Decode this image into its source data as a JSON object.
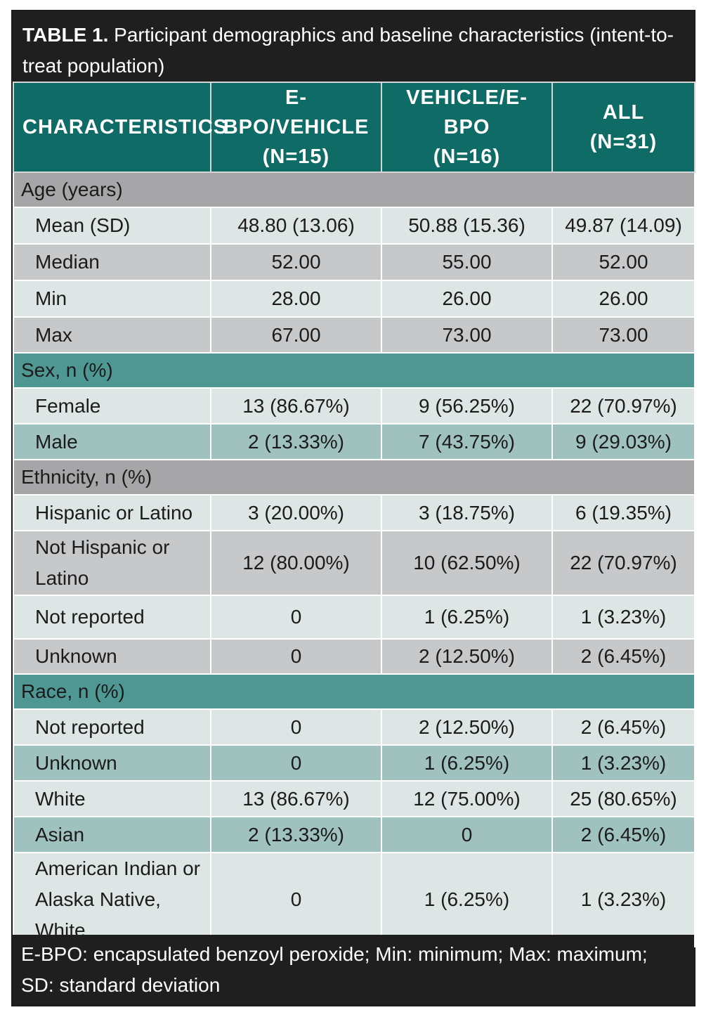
{
  "caption": {
    "label": "TABLE 1.",
    "text": " Participant demographics and baseline characteristics (intent-to-treat population)"
  },
  "headers": {
    "characteristics": "CHARACTERISTICS",
    "col1_name": "E-BPO/VEHICLE",
    "col1_n": "(N=15)",
    "col2_name": "VEHICLE/E-BPO",
    "col2_n": "(N=16)",
    "col3_name": "ALL",
    "col3_n": "(N=31)"
  },
  "age": {
    "title": "Age (years)",
    "rows": [
      {
        "label": "Mean (SD)",
        "v1": "48.80 (13.06)",
        "v2": "50.88 (15.36)",
        "v3": "49.87 (14.09)"
      },
      {
        "label": "Median",
        "v1": "52.00",
        "v2": "55.00",
        "v3": "52.00"
      },
      {
        "label": "Min",
        "v1": "28.00",
        "v2": "26.00",
        "v3": "26.00"
      },
      {
        "label": "Max",
        "v1": "67.00",
        "v2": "73.00",
        "v3": "73.00"
      }
    ]
  },
  "sex": {
    "title": "Sex, n (%)",
    "rows": [
      {
        "label": "Female",
        "v1": "13 (86.67%)",
        "v2": "9 (56.25%)",
        "v3": "22 (70.97%)"
      },
      {
        "label": "Male",
        "v1": "2 (13.33%)",
        "v2": "7 (43.75%)",
        "v3": "9 (29.03%)"
      }
    ]
  },
  "ethnicity": {
    "title": "Ethnicity, n (%)",
    "rows": [
      {
        "label": "Hispanic or Latino",
        "v1": "3 (20.00%)",
        "v2": "3 (18.75%)",
        "v3": "6 (19.35%)"
      },
      {
        "label_line1": "Not Hispanic or",
        "label_line2": "Latino",
        "v1": "12 (80.00%)",
        "v2": "10 (62.50%)",
        "v3": "22 (70.97%)"
      },
      {
        "label": "Not reported",
        "v1": "0",
        "v2": "1 (6.25%)",
        "v3": "1 (3.23%)"
      },
      {
        "label": "Unknown",
        "v1": "0",
        "v2": "2 (12.50%)",
        "v3": "2 (6.45%)"
      }
    ]
  },
  "race": {
    "title": "Race, n (%)",
    "rows": [
      {
        "label": "Not reported",
        "v1": "0",
        "v2": "2 (12.50%)",
        "v3": "2 (6.45%)"
      },
      {
        "label": "Unknown",
        "v1": "0",
        "v2": "1 (6.25%)",
        "v3": "1 (3.23%)"
      },
      {
        "label": "White",
        "v1": "13 (86.67%)",
        "v2": "12 (75.00%)",
        "v3": "25 (80.65%)"
      },
      {
        "label": "Asian",
        "v1": "2 (13.33%)",
        "v2": "0",
        "v3": "2 (6.45%)"
      },
      {
        "label_line1": "American Indian or",
        "label_line2": "Alaska Native, White",
        "v1": "0",
        "v2": "1 (6.25%)",
        "v3": "1 (3.23%)"
      }
    ]
  },
  "footer": {
    "text": "E-BPO: encapsulated benzoyl peroxide; Min: minimum; Max: maximum; SD: standard deviation"
  }
}
